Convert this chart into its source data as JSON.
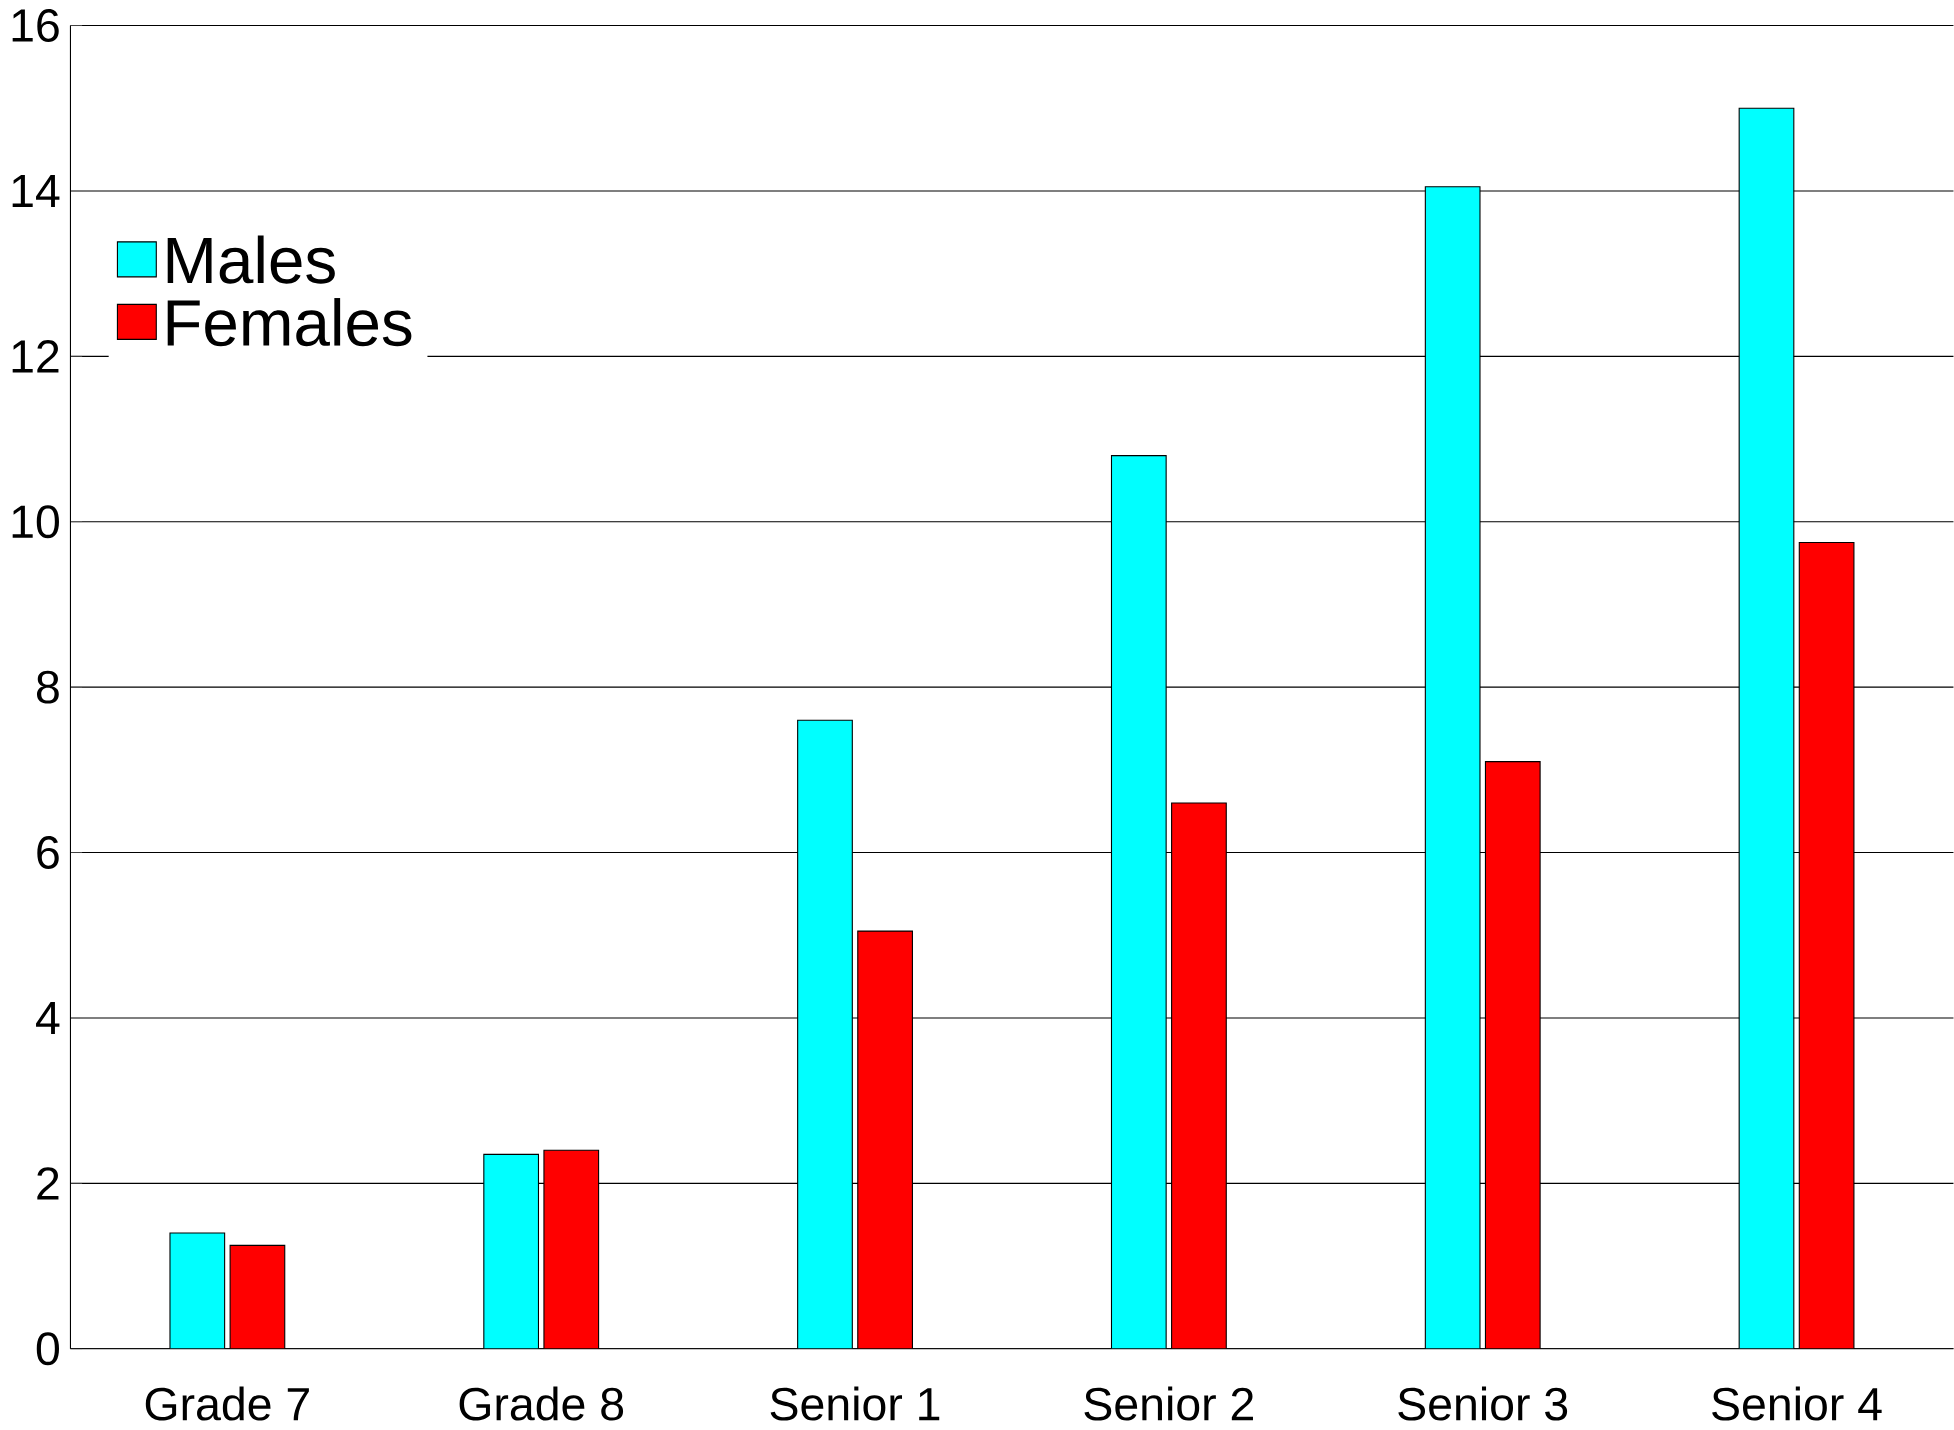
{
  "chart_data": {
    "type": "bar",
    "categories": [
      "Grade 7",
      "Grade 8",
      "Senior 1",
      "Senior 2",
      "Senior 3",
      "Senior 4"
    ],
    "series": [
      {
        "name": "Males",
        "color": "#00ffff",
        "values": [
          1.4,
          2.35,
          7.6,
          10.8,
          14.05,
          15.0
        ]
      },
      {
        "name": "Females",
        "color": "#ff0000",
        "values": [
          1.25,
          2.4,
          5.05,
          6.6,
          7.1,
          9.75
        ]
      }
    ],
    "ylim": [
      0,
      16
    ],
    "yticks": [
      0,
      2,
      4,
      6,
      8,
      10,
      12,
      14,
      16
    ],
    "grid": "y",
    "legend": "top left"
  }
}
